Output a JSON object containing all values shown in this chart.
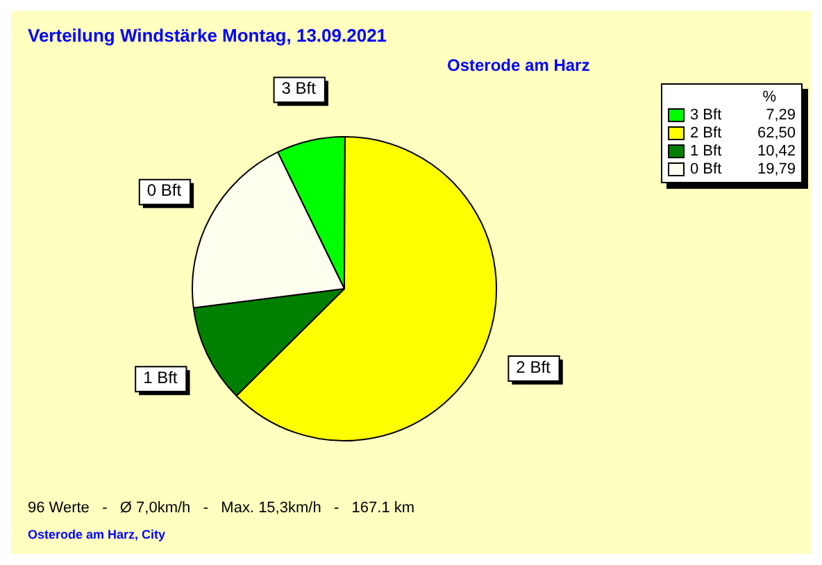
{
  "chart_data": {
    "type": "pie",
    "title": "Verteilung Windstärke  Montag, 13.09.2021",
    "subtitle": "Osterode am Harz",
    "legend_title": "%",
    "legend": "top right",
    "categories": [
      "3 Bft",
      "2 Bft",
      "1 Bft",
      "0 Bft"
    ],
    "values": [
      7.29,
      62.5,
      10.42,
      19.79
    ],
    "value_labels": [
      "7,29",
      "62,50",
      "10,42",
      "19,79"
    ],
    "colors": [
      "#00ff00",
      "#ffff00",
      "#008000",
      "#fffff0"
    ],
    "annotations": [
      "96 Werte   -   Ø 7,0km/h   -   Max. 15,3km/h   -   167.1 km",
      "Osterode am Harz, City"
    ]
  }
}
